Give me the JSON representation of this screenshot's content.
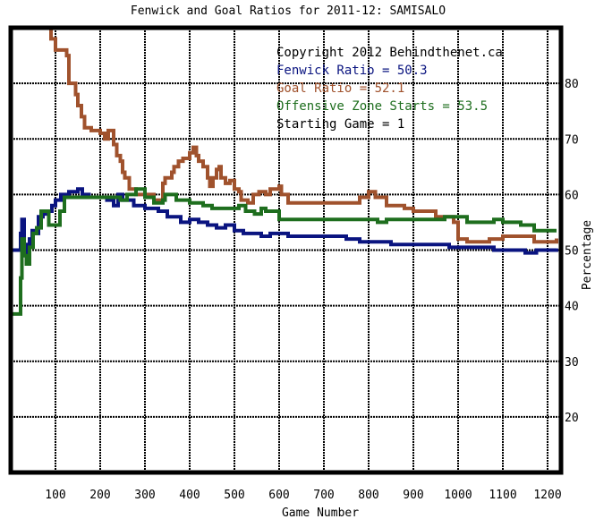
{
  "chart_data": {
    "type": "line",
    "title": "Fenwick and Goal Ratios for 2011-12: SAMISALO",
    "xlabel": "Game Number",
    "ylabel": "Percentage",
    "xlim": [
      0,
      1230
    ],
    "ylim": [
      10,
      90
    ],
    "xticks": [
      100,
      200,
      300,
      400,
      500,
      600,
      700,
      800,
      900,
      1000,
      1100,
      1200
    ],
    "yticks": [
      20,
      30,
      40,
      50,
      60,
      70,
      80
    ],
    "y_axis_side": "right",
    "grid": true,
    "legend": {
      "placement": "top-right",
      "lines": [
        {
          "text": "Copyright 2012 Behindthenet.ca",
          "color": "#000000"
        },
        {
          "text": "Fenwick Ratio = 50.3",
          "color": "#0a1480"
        },
        {
          "text": "Goal Ratio = 52.1",
          "color": "#a0522d"
        },
        {
          "text": "Offensive Zone Starts = 53.5",
          "color": "#1e6e1e"
        },
        {
          "text": "Starting Game = 1",
          "color": "#000000"
        }
      ]
    },
    "series": [
      {
        "name": "Fenwick Ratio",
        "color": "#0a1480",
        "points": [
          [
            0,
            50
          ],
          [
            18,
            50
          ],
          [
            22,
            53
          ],
          [
            25,
            55.5
          ],
          [
            30,
            51
          ],
          [
            36,
            48.5
          ],
          [
            42,
            52
          ],
          [
            48,
            53.5
          ],
          [
            56,
            53
          ],
          [
            62,
            56
          ],
          [
            72,
            56.5
          ],
          [
            82,
            57
          ],
          [
            92,
            58
          ],
          [
            100,
            59
          ],
          [
            112,
            60
          ],
          [
            130,
            60.5
          ],
          [
            150,
            61
          ],
          [
            160,
            60
          ],
          [
            175,
            59.5
          ],
          [
            200,
            59.5
          ],
          [
            215,
            59
          ],
          [
            225,
            59
          ],
          [
            230,
            58
          ],
          [
            240,
            60
          ],
          [
            250,
            59
          ],
          [
            275,
            58
          ],
          [
            300,
            57.5
          ],
          [
            330,
            57
          ],
          [
            350,
            56
          ],
          [
            380,
            55
          ],
          [
            400,
            55.5
          ],
          [
            420,
            55
          ],
          [
            440,
            54.5
          ],
          [
            460,
            54
          ],
          [
            480,
            54.5
          ],
          [
            500,
            53.5
          ],
          [
            520,
            53
          ],
          [
            540,
            53
          ],
          [
            560,
            52.5
          ],
          [
            580,
            53
          ],
          [
            600,
            53
          ],
          [
            620,
            52.5
          ],
          [
            700,
            52.5
          ],
          [
            750,
            52
          ],
          [
            780,
            51.5
          ],
          [
            800,
            51.5
          ],
          [
            850,
            51
          ],
          [
            900,
            51
          ],
          [
            950,
            51
          ],
          [
            980,
            50.5
          ],
          [
            1000,
            50.5
          ],
          [
            1050,
            50.5
          ],
          [
            1080,
            50
          ],
          [
            1100,
            50
          ],
          [
            1150,
            49.5
          ],
          [
            1175,
            50
          ],
          [
            1200,
            50
          ],
          [
            1220,
            50.3
          ]
        ]
      },
      {
        "name": "Goal Ratio",
        "color": "#a0522d",
        "points": [
          [
            85,
            90
          ],
          [
            90,
            88
          ],
          [
            100,
            86
          ],
          [
            125,
            85
          ],
          [
            130,
            80
          ],
          [
            145,
            78
          ],
          [
            150,
            76
          ],
          [
            158,
            74
          ],
          [
            165,
            72
          ],
          [
            180,
            71.5
          ],
          [
            200,
            71
          ],
          [
            210,
            70
          ],
          [
            218,
            71.5
          ],
          [
            230,
            69
          ],
          [
            237,
            67
          ],
          [
            245,
            66
          ],
          [
            250,
            64
          ],
          [
            255,
            63
          ],
          [
            265,
            61
          ],
          [
            280,
            60
          ],
          [
            300,
            60
          ],
          [
            320,
            59
          ],
          [
            340,
            62
          ],
          [
            345,
            63
          ],
          [
            360,
            64
          ],
          [
            365,
            65
          ],
          [
            375,
            66
          ],
          [
            385,
            66.5
          ],
          [
            400,
            67.5
          ],
          [
            408,
            68.5
          ],
          [
            415,
            67
          ],
          [
            420,
            66
          ],
          [
            430,
            65
          ],
          [
            440,
            63
          ],
          [
            445,
            61.5
          ],
          [
            452,
            63
          ],
          [
            460,
            64.5
          ],
          [
            466,
            65
          ],
          [
            470,
            63
          ],
          [
            480,
            62
          ],
          [
            490,
            62.5
          ],
          [
            500,
            61
          ],
          [
            510,
            60.5
          ],
          [
            515,
            59
          ],
          [
            530,
            58.5
          ],
          [
            542,
            60
          ],
          [
            555,
            60.5
          ],
          [
            570,
            60
          ],
          [
            580,
            61
          ],
          [
            600,
            61.5
          ],
          [
            605,
            60
          ],
          [
            620,
            58.5
          ],
          [
            700,
            58.5
          ],
          [
            760,
            58.5
          ],
          [
            780,
            59.5
          ],
          [
            800,
            60.5
          ],
          [
            815,
            59.5
          ],
          [
            840,
            58
          ],
          [
            880,
            57.5
          ],
          [
            900,
            57
          ],
          [
            950,
            56
          ],
          [
            990,
            55
          ],
          [
            1000,
            52
          ],
          [
            1020,
            51.5
          ],
          [
            1050,
            51.5
          ],
          [
            1070,
            52
          ],
          [
            1100,
            52.5
          ],
          [
            1140,
            52.5
          ],
          [
            1170,
            51.5
          ],
          [
            1200,
            51.5
          ],
          [
            1220,
            52.1
          ]
        ]
      },
      {
        "name": "Offensive Zone Starts",
        "color": "#1e6e1e",
        "points": [
          [
            0,
            38.5
          ],
          [
            15,
            38.5
          ],
          [
            22,
            45
          ],
          [
            25,
            52
          ],
          [
            30,
            49
          ],
          [
            35,
            47.5
          ],
          [
            42,
            50.5
          ],
          [
            50,
            53
          ],
          [
            58,
            54
          ],
          [
            68,
            57
          ],
          [
            85,
            54.5
          ],
          [
            110,
            57
          ],
          [
            120,
            59.5
          ],
          [
            150,
            59.5
          ],
          [
            200,
            59.5
          ],
          [
            235,
            59.5
          ],
          [
            245,
            59
          ],
          [
            260,
            60
          ],
          [
            280,
            61
          ],
          [
            300,
            59.5
          ],
          [
            320,
            58.5
          ],
          [
            340,
            59
          ],
          [
            345,
            60
          ],
          [
            370,
            59
          ],
          [
            400,
            58.5
          ],
          [
            430,
            58
          ],
          [
            450,
            57.5
          ],
          [
            480,
            57.5
          ],
          [
            510,
            58
          ],
          [
            525,
            57
          ],
          [
            545,
            56.5
          ],
          [
            560,
            57.5
          ],
          [
            570,
            57
          ],
          [
            600,
            55.5
          ],
          [
            650,
            55.5
          ],
          [
            700,
            55.5
          ],
          [
            780,
            55.5
          ],
          [
            800,
            55.5
          ],
          [
            820,
            55
          ],
          [
            840,
            55.5
          ],
          [
            880,
            55.5
          ],
          [
            920,
            55.5
          ],
          [
            950,
            55.5
          ],
          [
            970,
            56
          ],
          [
            1000,
            56
          ],
          [
            1020,
            55
          ],
          [
            1050,
            55
          ],
          [
            1080,
            55.5
          ],
          [
            1100,
            55
          ],
          [
            1140,
            54.5
          ],
          [
            1170,
            53.5
          ],
          [
            1200,
            53.5
          ],
          [
            1220,
            53.5
          ]
        ]
      }
    ]
  }
}
